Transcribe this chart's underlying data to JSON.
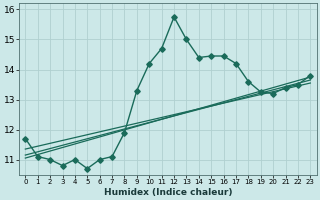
{
  "title": "",
  "xlabel": "Humidex (Indice chaleur)",
  "ylabel": "",
  "background_color": "#cce8e8",
  "grid_color": "#b0d0d0",
  "line_color": "#1a6b5a",
  "xlim": [
    -0.5,
    23.5
  ],
  "ylim": [
    10.5,
    16.2
  ],
  "yticks": [
    11,
    12,
    13,
    14,
    15,
    16
  ],
  "xticks": [
    0,
    1,
    2,
    3,
    4,
    5,
    6,
    7,
    8,
    9,
    10,
    11,
    12,
    13,
    14,
    15,
    16,
    17,
    18,
    19,
    20,
    21,
    22,
    23
  ],
  "line1_x": [
    0,
    1,
    2,
    3,
    4,
    5,
    6,
    7,
    8,
    9,
    10,
    11,
    12,
    13,
    14,
    15,
    16,
    17,
    18,
    19,
    20,
    21,
    22,
    23
  ],
  "line1_y": [
    11.7,
    11.1,
    11.0,
    10.8,
    11.0,
    10.7,
    11.0,
    11.1,
    11.9,
    13.3,
    14.2,
    14.7,
    15.75,
    15.0,
    14.4,
    14.45,
    14.45,
    14.2,
    13.6,
    13.25,
    13.2,
    13.4,
    13.5,
    13.8
  ],
  "line2_x": [
    0,
    23
  ],
  "line2_y": [
    11.35,
    13.55
  ],
  "line3_x": [
    0,
    23
  ],
  "line3_y": [
    11.15,
    13.65
  ],
  "line4_x": [
    0,
    23
  ],
  "line4_y": [
    11.05,
    13.75
  ],
  "marker": "D",
  "markersize": 2.8,
  "linewidth": 1.0,
  "straight_linewidth": 0.9
}
